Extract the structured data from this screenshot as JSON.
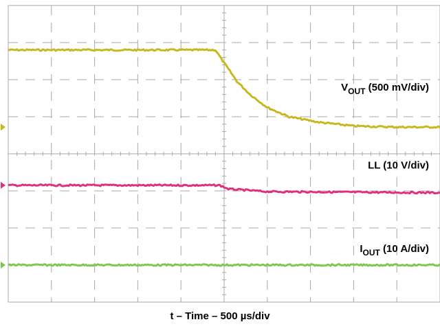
{
  "chart_data": {
    "type": "line",
    "xlabel": "t – Time – 500 µs/div",
    "x_unit_per_div": "500 µs",
    "divisions": {
      "x": 10,
      "y": 8
    },
    "grid": true,
    "series": [
      {
        "name": "V_OUT",
        "label_main": "V",
        "label_sub": "OUT",
        "label_rest": " (500 mV/div)",
        "color": "#c8b820",
        "points_div": [
          [
            0,
            6.8
          ],
          [
            4.8,
            6.8
          ],
          [
            5.0,
            6.45
          ],
          [
            5.3,
            5.95
          ],
          [
            5.6,
            5.6
          ],
          [
            6.0,
            5.25
          ],
          [
            6.5,
            5.0
          ],
          [
            7.2,
            4.85
          ],
          [
            8.0,
            4.75
          ],
          [
            9.0,
            4.72
          ],
          [
            10.0,
            4.72
          ]
        ]
      },
      {
        "name": "LL",
        "label_main": "LL",
        "label_sub": "",
        "label_rest": " (10 V/div)",
        "color": "#e0307c",
        "points_div": [
          [
            0,
            3.15
          ],
          [
            4.9,
            3.15
          ],
          [
            5.1,
            3.05
          ],
          [
            6.0,
            2.98
          ],
          [
            10.0,
            2.95
          ]
        ]
      },
      {
        "name": "I_OUT",
        "label_main": "I",
        "label_sub": "OUT",
        "label_rest": " (10 A/div)",
        "color": "#7ec850",
        "points_div": [
          [
            0,
            1.0
          ],
          [
            10.0,
            1.0
          ]
        ]
      }
    ]
  }
}
